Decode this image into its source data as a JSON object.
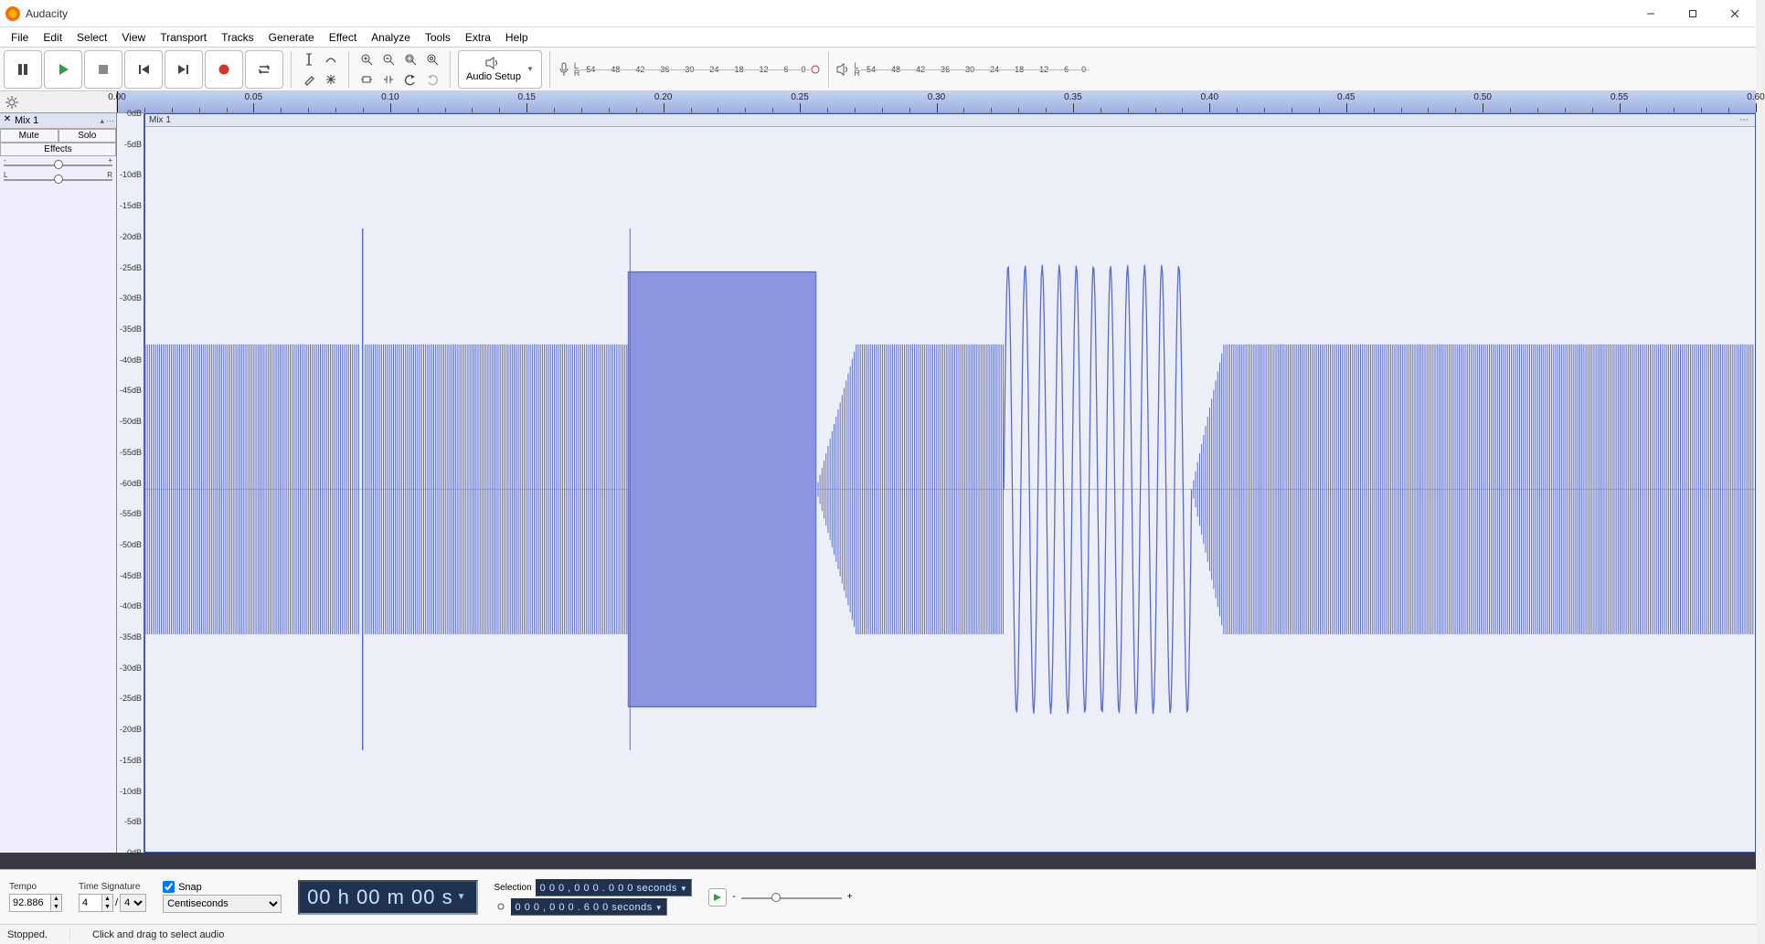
{
  "window": {
    "title": "Audacity"
  },
  "menu": [
    "File",
    "Edit",
    "Select",
    "View",
    "Transport",
    "Tracks",
    "Generate",
    "Effect",
    "Analyze",
    "Tools",
    "Extra",
    "Help"
  ],
  "transport": {
    "pause_icon": "❚❚",
    "play_icon": "▶",
    "stop_icon": "■",
    "skip_start_icon": "⏮",
    "skip_end_icon": "⏭",
    "record_icon": "●",
    "loop_icon": "↻"
  },
  "audio_setup_label": "Audio Setup",
  "meters": {
    "ticks": [
      "-54",
      "-48",
      "-42",
      "-36",
      "-30",
      "-24",
      "-18",
      "-12",
      "-6",
      "0"
    ],
    "L": "L",
    "R": "R"
  },
  "ruler": {
    "start": 0.0,
    "end": 0.6,
    "major_step": 0.05,
    "minor_per_major": 5,
    "labels": [
      "0.00",
      "0.05",
      "0.10",
      "0.15",
      "0.20",
      "0.25",
      "0.30",
      "0.35",
      "0.40",
      "0.45",
      "0.50",
      "0.55",
      "0.60"
    ],
    "playhead_at": 0.0
  },
  "track_panel": {
    "name": "Mix 1",
    "mute": "Mute",
    "solo": "Solo",
    "effects": "Effects",
    "pan_l": "L",
    "pan_r": "R",
    "gain_minus": "-",
    "gain_plus": "+"
  },
  "track": {
    "label": "Mix 1",
    "db_scale_top": [
      "0dB",
      "-5dB",
      "-10dB",
      "-15dB",
      "-20dB",
      "-25dB",
      "-30dB",
      "-35dB",
      "-40dB",
      "-45dB",
      "-50dB",
      "-55dB",
      "-60dB"
    ],
    "wave_color": "#5a6bd8",
    "wave_fill": "#8c96e0",
    "bg": "#eceef8",
    "segments": [
      {
        "t0": 0.0,
        "t1": 0.08,
        "type": "dense",
        "amp": 0.4,
        "freq": 220
      },
      {
        "t0": 0.08,
        "t1": 0.082,
        "type": "spike",
        "amp": 0.72
      },
      {
        "t0": 0.082,
        "t1": 0.18,
        "type": "dense",
        "amp": 0.4,
        "freq": 220
      },
      {
        "t0": 0.18,
        "t1": 0.25,
        "type": "block",
        "amp": 0.6
      },
      {
        "t0": 0.25,
        "t1": 0.32,
        "type": "dense",
        "amp": 0.4,
        "freq": 160,
        "ramp_in": 0.015
      },
      {
        "t0": 0.32,
        "t1": 0.39,
        "type": "sine",
        "amp": 0.62,
        "cycles": 11
      },
      {
        "t0": 0.39,
        "t1": 0.6,
        "type": "dense",
        "amp": 0.4,
        "freq": 160,
        "ramp_in": 0.012
      }
    ]
  },
  "bottom": {
    "tempo_label": "Tempo",
    "tempo_value": "92.886",
    "timesig_label": "Time Signature",
    "timesig_num": "4",
    "timesig_den": "4",
    "snap_label": "Snap",
    "snap_checked": true,
    "snap_unit": "Centiseconds",
    "time_counter": "00 h 00 m 00 s",
    "selection_label": "Selection",
    "sel_start": "0 0 0 , 0 0 0 . 0 0 0  seconds",
    "sel_end": "0 0 0 , 0 0 0 . 6 0 0  seconds",
    "speed_min": "-",
    "speed_max": "+"
  },
  "status": {
    "left": "Stopped.",
    "right": "Click and drag to select audio"
  },
  "colors": {
    "play": "#2ea043",
    "record": "#d5342c",
    "accent": "#6da8e0",
    "ruler_bg_top": "#c4d1f0",
    "ruler_bg_bot": "#9fb1df"
  }
}
